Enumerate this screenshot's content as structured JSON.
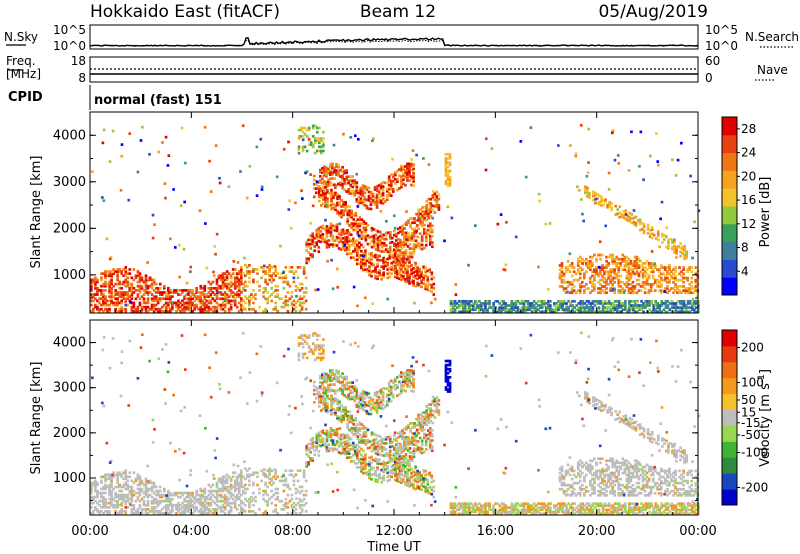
{
  "header": {
    "radar": "Hokkaido East (fitACF)",
    "beam": "Beam 12",
    "date": "05/Aug/2019"
  },
  "colors": {
    "power_scale": [
      "#0000ff",
      "#2a4bd0",
      "#3e7f9b",
      "#3aa05a",
      "#93c93c",
      "#f3c42a",
      "#f7a21f",
      "#f07514",
      "#e84010",
      "#e00000"
    ],
    "velocity_scale": [
      "#0000cc",
      "#1848c0",
      "#2f8a3c",
      "#42b234",
      "#9bd650",
      "#bdbdbd",
      "#f6c12e",
      "#f39a1c",
      "#ee6f14",
      "#e83a10",
      "#e00000"
    ],
    "scatter_gray": "#bdbdbd"
  },
  "status_panel": {
    "nsky_label": "N.Sky",
    "nsky_ticks": [
      "10^5",
      "10^0"
    ],
    "nsearch_label": "N.Search",
    "freq_label_line1": "Freq.",
    "freq_label_line2": "[MHz]",
    "freq_ticks": [
      "18",
      "8"
    ],
    "nave_ticks": [
      "60",
      "0"
    ],
    "nave_label": "Nave",
    "cpid_label": "CPID",
    "cpid_value": "normal (fast) 151"
  },
  "chart_data": [
    {
      "type": "heatmap",
      "panel": "power",
      "ylabel": "Slant Range [km]",
      "xlabel": "",
      "xlim": [
        "00:00",
        "24:00"
      ],
      "ylim": [
        180,
        4500
      ],
      "yticks": [
        "1000",
        "2000",
        "3000",
        "4000"
      ],
      "colorbar_label": "Power [dB]",
      "colorbar_ticks": [
        "4",
        "8",
        "12",
        "16",
        "20",
        "24",
        "28"
      ],
      "colorbar_range": [
        0,
        30
      ]
    },
    {
      "type": "heatmap",
      "panel": "velocity",
      "ylabel": "Slant Range [km]",
      "xlabel": "Time UT",
      "xticks": [
        "00:00",
        "04:00",
        "08:00",
        "12:00",
        "16:00",
        "20:00",
        "00:00"
      ],
      "xlim": [
        "00:00",
        "24:00"
      ],
      "ylim": [
        180,
        4500
      ],
      "yticks": [
        "1000",
        "2000",
        "3000",
        "4000"
      ],
      "colorbar_label": "Velocity [m s^-1]",
      "colorbar_ticks": [
        "200",
        "100",
        "50",
        "15",
        "-15",
        "-50",
        "-100",
        "-200"
      ],
      "colorbar_range": [
        -250,
        250
      ]
    }
  ]
}
